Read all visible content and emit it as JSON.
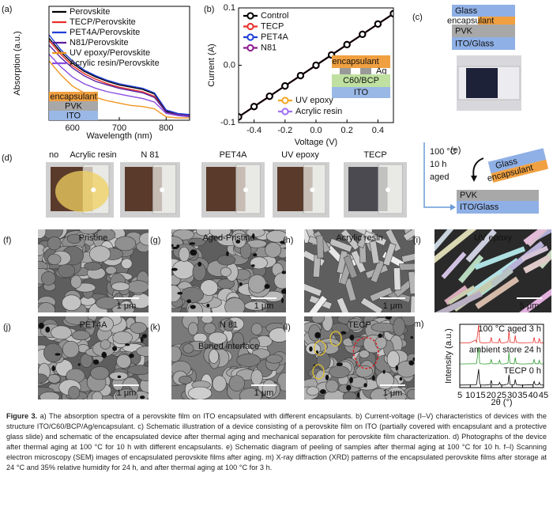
{
  "chart_data": [
    {
      "type": "line",
      "label": "(a)",
      "xlabel": "Wavelength (nm)",
      "ylabel": "Absorption (a.u.)",
      "x": [
        550,
        575,
        600,
        625,
        650,
        675,
        700,
        725,
        750,
        775,
        800,
        825,
        850
      ],
      "xlim": [
        550,
        850
      ],
      "xticks": [
        600,
        700,
        800
      ],
      "ylim": [
        0,
        1
      ],
      "series": [
        {
          "name": "Perovskite",
          "color": "#000000",
          "values": [
            0.72,
            0.6,
            0.5,
            0.43,
            0.38,
            0.34,
            0.31,
            0.29,
            0.27,
            0.23,
            0.08,
            0.05,
            0.04
          ]
        },
        {
          "name": "TECP/Perovskite",
          "color": "#e8302a",
          "values": [
            0.7,
            0.58,
            0.48,
            0.41,
            0.36,
            0.32,
            0.29,
            0.27,
            0.25,
            0.21,
            0.07,
            0.05,
            0.04
          ]
        },
        {
          "name": "PET4A/Perovskite",
          "color": "#1f3fd6",
          "values": [
            0.75,
            0.62,
            0.52,
            0.44,
            0.39,
            0.35,
            0.32,
            0.3,
            0.28,
            0.24,
            0.09,
            0.06,
            0.05
          ]
        },
        {
          "name": "N81/Perovskite",
          "color": "#5a1f9a",
          "values": [
            0.66,
            0.55,
            0.46,
            0.39,
            0.34,
            0.31,
            0.28,
            0.26,
            0.24,
            0.2,
            0.07,
            0.05,
            0.04
          ]
        },
        {
          "name": "UV epoxy/Perovskite",
          "color": "#f0961e",
          "values": [
            0.52,
            0.4,
            0.3,
            0.24,
            0.2,
            0.17,
            0.15,
            0.13,
            0.12,
            0.1,
            0.03,
            0.02,
            0.02
          ]
        },
        {
          "name": "Acrylic resin/Perovskite",
          "color": "#8a4ee0",
          "values": [
            0.58,
            0.47,
            0.38,
            0.32,
            0.28,
            0.25,
            0.23,
            0.21,
            0.19,
            0.16,
            0.06,
            0.04,
            0.03
          ]
        }
      ],
      "inset": [
        "encapsulant",
        "PVK",
        "ITO"
      ]
    },
    {
      "type": "line",
      "label": "(b)",
      "xlabel": "Voltage (V)",
      "ylabel": "Current (A)",
      "markers": true,
      "x": [
        -0.5,
        -0.4,
        -0.3,
        -0.2,
        -0.1,
        0,
        0.1,
        0.2,
        0.3,
        0.4,
        0.5
      ],
      "xlim": [
        -0.5,
        0.5
      ],
      "xticks": [
        -0.4,
        -0.2,
        {
          "value": 0,
          "label": "0.0"
        },
        0.2,
        0.4
      ],
      "ylim": [
        -0.1,
        0.1
      ],
      "yticks": [
        -0.1,
        {
          "value": 0,
          "label": "0.0"
        },
        0.1
      ],
      "series": [
        {
          "name": "Control",
          "color": "#000000",
          "values": [
            -0.09,
            -0.072,
            -0.054,
            -0.036,
            -0.018,
            0,
            0.018,
            0.036,
            0.054,
            0.072,
            0.09
          ]
        },
        {
          "name": "TECP",
          "color": "#e8302a",
          "values": [
            -0.09,
            -0.072,
            -0.054,
            -0.036,
            -0.018,
            0,
            0.018,
            0.036,
            0.054,
            0.072,
            0.09
          ]
        },
        {
          "name": "PET4A",
          "color": "#1f3fd6",
          "values": [
            -0.09,
            -0.072,
            -0.054,
            -0.036,
            -0.018,
            0,
            0.018,
            0.036,
            0.054,
            0.072,
            0.09
          ]
        },
        {
          "name": "N81",
          "color": "#8e1a8e",
          "values": [
            -0.09,
            -0.072,
            -0.054,
            -0.036,
            -0.018,
            0,
            0.018,
            0.036,
            0.054,
            0.072,
            0.09
          ]
        },
        {
          "name": "UV epoxy",
          "color": "#f5a623",
          "values": [
            -0.09,
            -0.072,
            -0.054,
            -0.036,
            -0.018,
            0,
            0.018,
            0.036,
            0.054,
            0.072,
            0.09
          ]
        },
        {
          "name": "Acrylic resin",
          "color": "#a070f0",
          "values": [
            -0.09,
            -0.072,
            -0.054,
            -0.036,
            -0.018,
            0,
            0.018,
            0.036,
            0.054,
            0.072,
            0.09
          ]
        }
      ],
      "inset": [
        "encapsulant",
        "Ag",
        "C60/BCP",
        "ITO"
      ]
    },
    {
      "type": "line",
      "label": "(m)",
      "xlabel": "2θ (°)",
      "ylabel": "Intensity (a.u.)",
      "x": [
        5,
        10,
        12.5,
        13,
        14,
        14.5,
        15,
        17,
        19.5,
        20,
        20.5,
        23.5,
        24,
        24.5,
        26,
        28,
        28.5,
        29,
        31,
        31.5,
        32,
        34,
        35,
        40,
        40.5,
        41,
        42.5,
        43,
        43.5,
        45
      ],
      "xlim": [
        5,
        45
      ],
      "xticks": [
        5,
        10,
        15,
        20,
        25,
        30,
        35,
        40,
        45
      ],
      "ylim": [
        0,
        1
      ],
      "series": [
        {
          "name": "100 °C aged 3 h",
          "color": "#e8302a",
          "values": [
            0.05,
            0.06,
            0.2,
            0.08,
            1.0,
            0.1,
            0.06,
            0.05,
            0.07,
            0.35,
            0.07,
            0.06,
            0.3,
            0.06,
            0.05,
            0.1,
            0.7,
            0.08,
            0.06,
            0.45,
            0.08,
            0.05,
            0.05,
            0.07,
            0.35,
            0.07,
            0.06,
            0.3,
            0.06,
            0.05
          ]
        },
        {
          "name": "ambient store 24 h",
          "color": "#2e9a2e",
          "values": [
            0.05,
            0.06,
            0.06,
            0.08,
            0.95,
            0.1,
            0.06,
            0.05,
            0.07,
            0.3,
            0.07,
            0.06,
            0.25,
            0.06,
            0.05,
            0.1,
            0.65,
            0.08,
            0.06,
            0.4,
            0.08,
            0.05,
            0.05,
            0.07,
            0.3,
            0.07,
            0.06,
            0.25,
            0.06,
            0.05
          ]
        },
        {
          "name": "TECP 0 h",
          "color": "#000000",
          "values": [
            0.05,
            0.06,
            0.06,
            0.08,
            0.9,
            0.1,
            0.06,
            0.05,
            0.07,
            0.3,
            0.07,
            0.06,
            0.2,
            0.06,
            0.05,
            0.1,
            0.6,
            0.08,
            0.06,
            0.35,
            0.08,
            0.05,
            0.05,
            0.07,
            0.25,
            0.07,
            0.06,
            0.2,
            0.06,
            0.05
          ]
        }
      ]
    }
  ],
  "panel_c": {
    "label": "(c)",
    "layers": [
      "Glass",
      "encapsulant",
      "PVK",
      "ITO/Glass"
    ]
  },
  "panel_d": {
    "label": "(d)",
    "samples": [
      "no",
      "Acrylic resin",
      "N 81",
      "PET4A",
      "UV epoxy",
      "TECP"
    ]
  },
  "panel_e": {
    "label": "(e)",
    "conditions": [
      "100 °C",
      "10 h",
      "aged"
    ],
    "layers": [
      "Glass",
      "encapsulant",
      "PVK",
      "ITO/Glass"
    ]
  },
  "sem": [
    {
      "label": "(f)",
      "title": "Pristine",
      "scale": "1 μm"
    },
    {
      "label": "(g)",
      "title": "Aged-Pristine",
      "scale": "1 μm"
    },
    {
      "label": "(h)",
      "title": "Acrylic resin",
      "scale": "1 μm"
    },
    {
      "label": "(i)",
      "title": "UV epoxy",
      "scale": "5 μm"
    },
    {
      "label": "(j)",
      "title": "PET4A",
      "scale": "1 μm"
    },
    {
      "label": "(k)",
      "title": "N 81",
      "note": "Buried interface",
      "scale": "1 μm"
    },
    {
      "label": "(l)",
      "title": "TECP",
      "scale": "1 μm"
    }
  ],
  "caption": {
    "label": "Figure 3.",
    "text": "a) The absorption spectra of a perovskite film on ITO encapsulated with different encapsulants. b) Current-voltage (I–V) characteristics of devices with the structure ITO/C60/BCP/Ag/encapsulant. c) Schematic illustration of a device consisting of a perovskite film on ITO (partially covered with encapsulant and a protective glass slide) and schematic of the encapsulated device after thermal aging and mechanical separation for perovskite film characterization. d) Photographs of the device after thermal aging at 100 °C for 10 h with different encapsulants. e) Schematic diagram of peeling of samples after thermal aging at 100 °C for 10 h. f–l) Scanning electron microscopy (SEM) images of encapsulated perovskite films after aging. m) X-ray diffraction (XRD) patterns of the encapsulated perovskite films after storage at 24 °C and 35% relative humidity for 24 h, and after thermal aging at 100 °C for 3 h."
  }
}
